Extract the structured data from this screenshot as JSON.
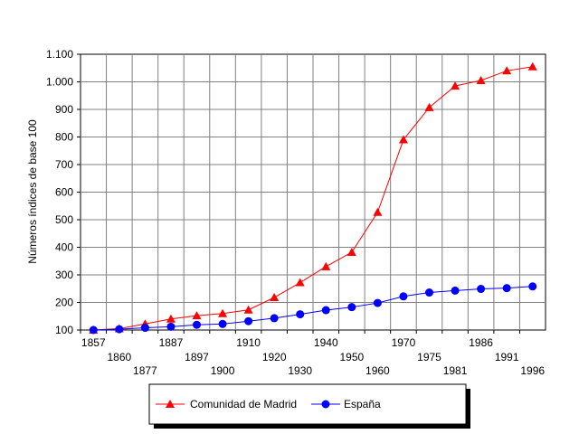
{
  "chart_data": {
    "type": "line",
    "title": "",
    "xlabel": "",
    "ylabel": "Números índices de base 100",
    "x": [
      "1857",
      "1860",
      "1877",
      "1887",
      "1897",
      "1900",
      "1910",
      "1920",
      "1930",
      "1940",
      "1950",
      "1960",
      "1970",
      "1975",
      "1981",
      "1986",
      "1991",
      "1996"
    ],
    "ylim": [
      100,
      1100
    ],
    "y_ticks": [
      "100",
      "200",
      "300",
      "400",
      "500",
      "600",
      "700",
      "800",
      "900",
      "1.000",
      "1.100"
    ],
    "grid": true,
    "legend_position": "bottom",
    "series": [
      {
        "name": "Comunidad de Madrid",
        "color": "#ff0000",
        "marker": "triangle",
        "values": [
          100,
          105,
          122,
          140,
          152,
          160,
          173,
          218,
          272,
          330,
          382,
          527,
          790,
          907,
          985,
          1005,
          1040,
          1055
        ]
      },
      {
        "name": "España",
        "color": "#0000ff",
        "marker": "circle",
        "values": [
          100,
          103,
          108,
          112,
          119,
          122,
          132,
          143,
          157,
          172,
          183,
          198,
          222,
          236,
          243,
          249,
          252,
          258
        ]
      }
    ]
  }
}
